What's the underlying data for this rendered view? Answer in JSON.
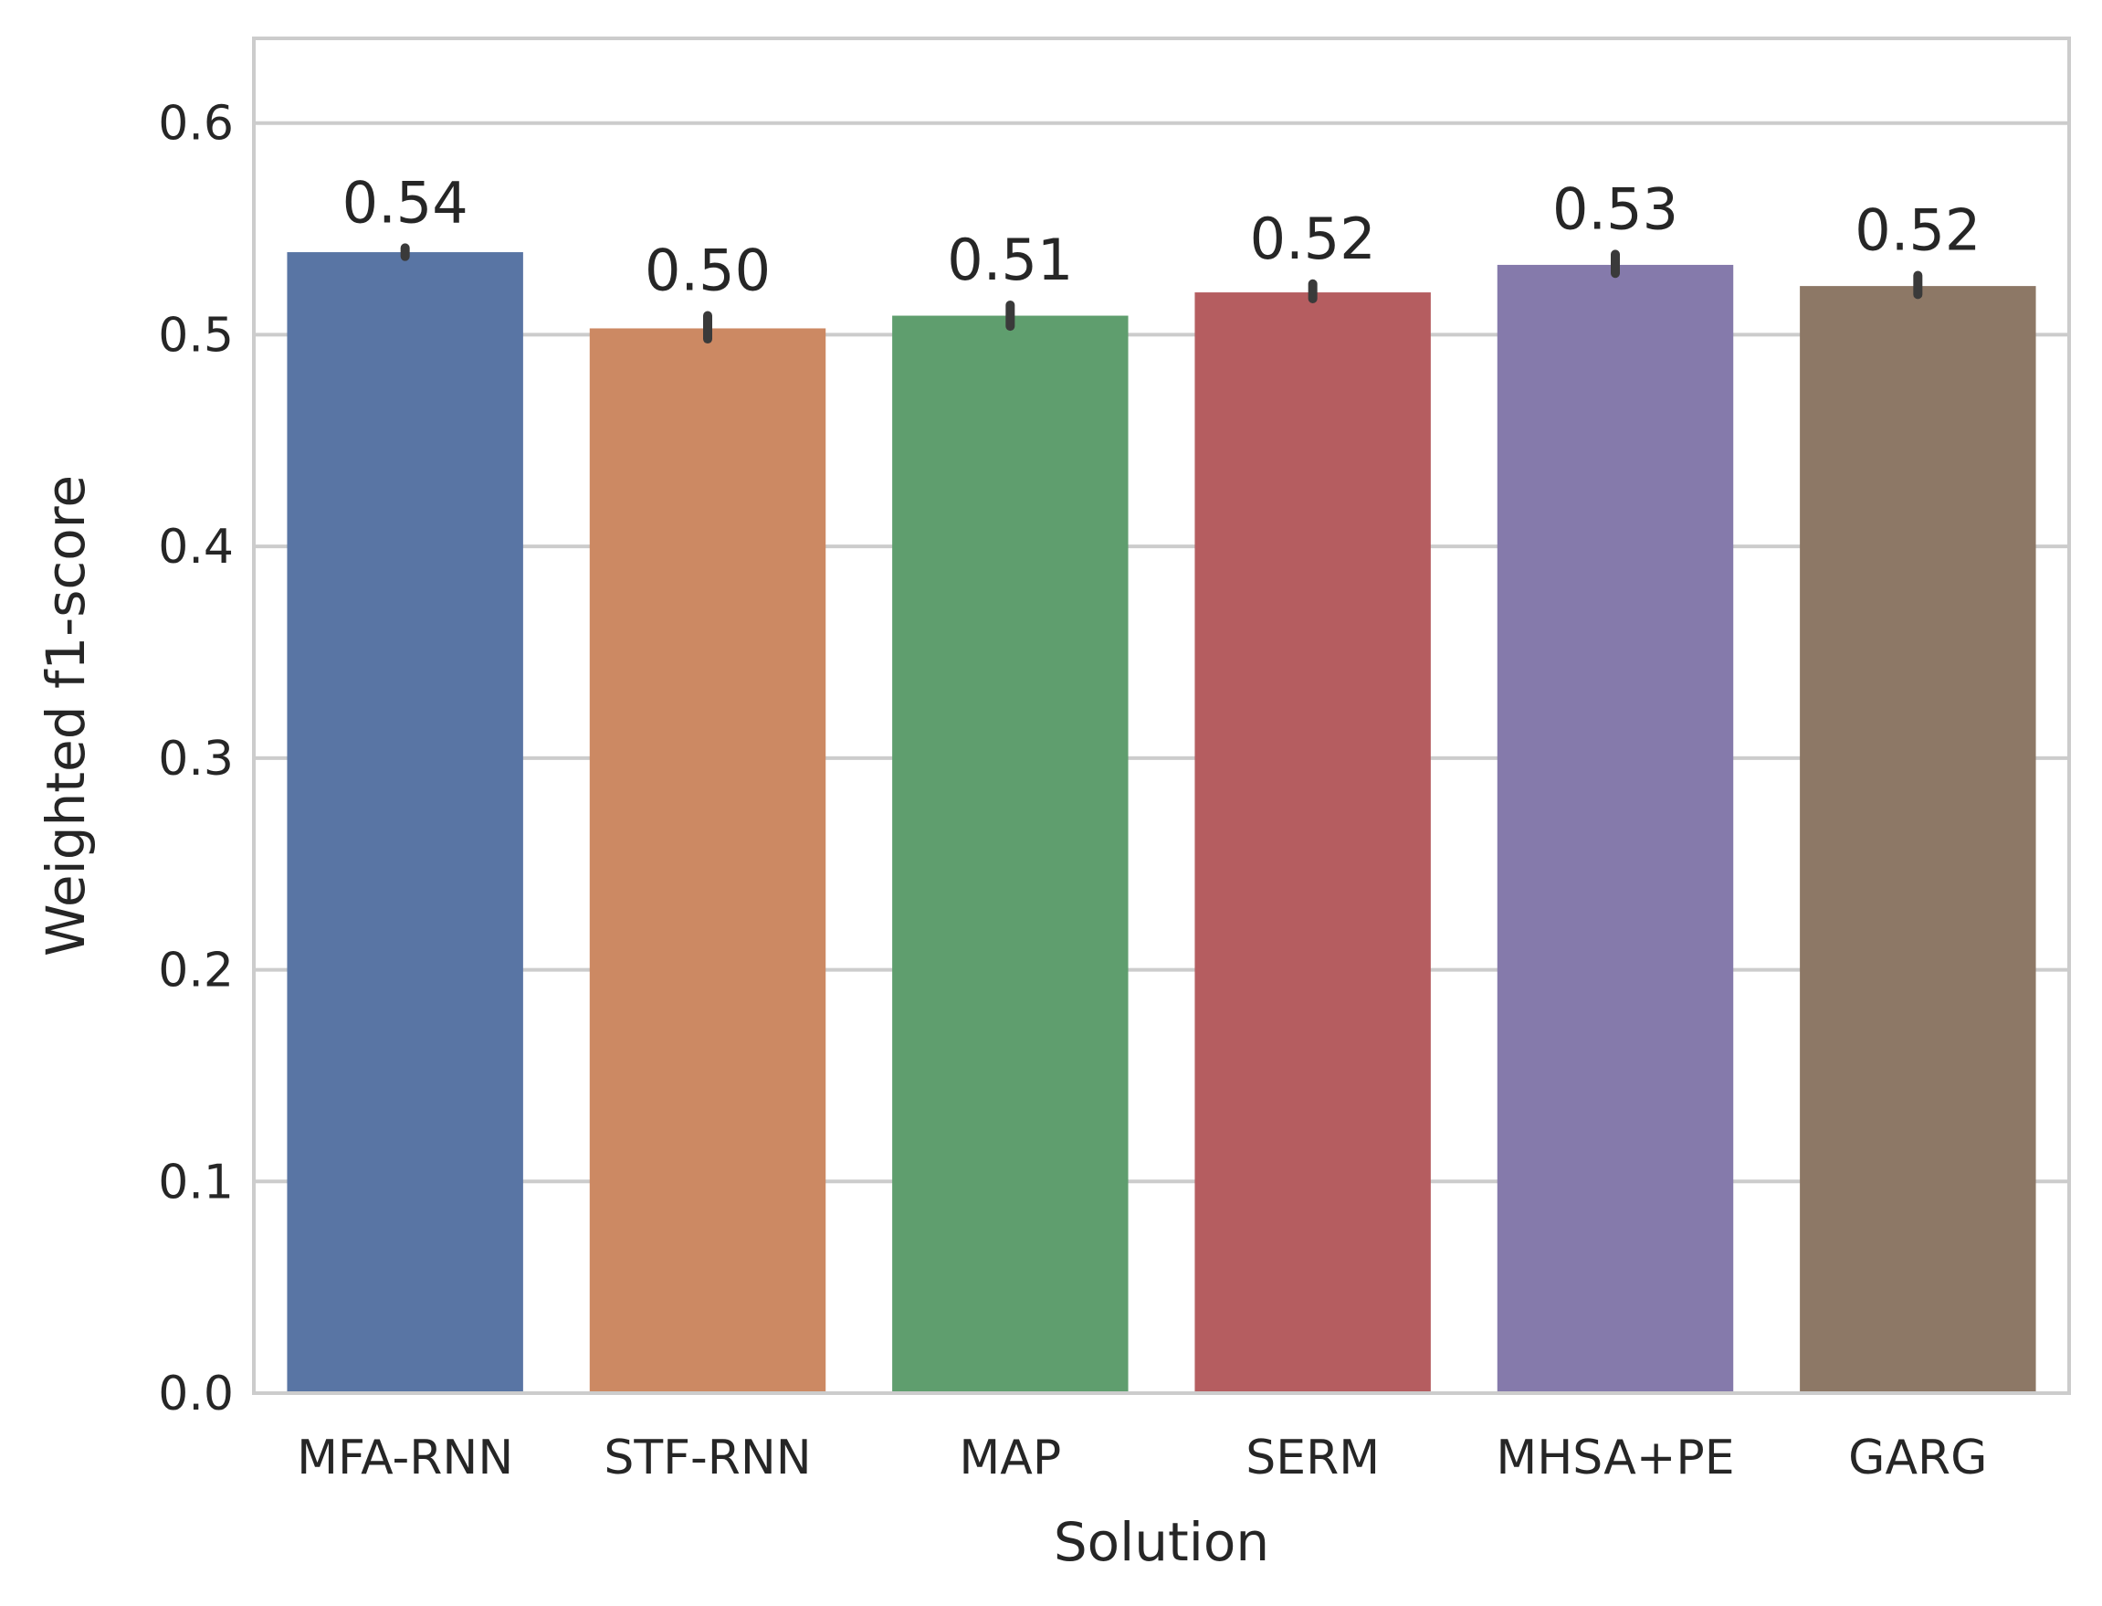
{
  "chart_data": {
    "type": "bar",
    "categories": [
      "MFA-RNN",
      "STF-RNN",
      "MAP",
      "SERM",
      "MHSA+PE",
      "GARG"
    ],
    "values": [
      0.539,
      0.503,
      0.509,
      0.52,
      0.533,
      0.523
    ],
    "value_labels": [
      "0.54",
      "0.50",
      "0.51",
      "0.52",
      "0.53",
      "0.52"
    ],
    "error_bars": [
      [
        0.537,
        0.541
      ],
      [
        0.498,
        0.509
      ],
      [
        0.504,
        0.514
      ],
      [
        0.517,
        0.524
      ],
      [
        0.529,
        0.538
      ],
      [
        0.519,
        0.528
      ]
    ],
    "colors": [
      "#5975a4",
      "#cc8963",
      "#5f9e6e",
      "#b55d60",
      "#857aab",
      "#8d7866"
    ],
    "error_color": "#3a3a3a",
    "xlabel": "Solution",
    "ylabel": "Weighted f1-score",
    "ylim": [
      0,
      0.64
    ],
    "yticks": [
      0.0,
      0.1,
      0.2,
      0.3,
      0.4,
      0.5,
      0.6
    ],
    "ytick_labels": [
      "0.0",
      "0.1",
      "0.2",
      "0.3",
      "0.4",
      "0.5",
      "0.6"
    ],
    "grid": "y",
    "gridline_color": "#cccccc",
    "frame_color": "#cccccc"
  }
}
